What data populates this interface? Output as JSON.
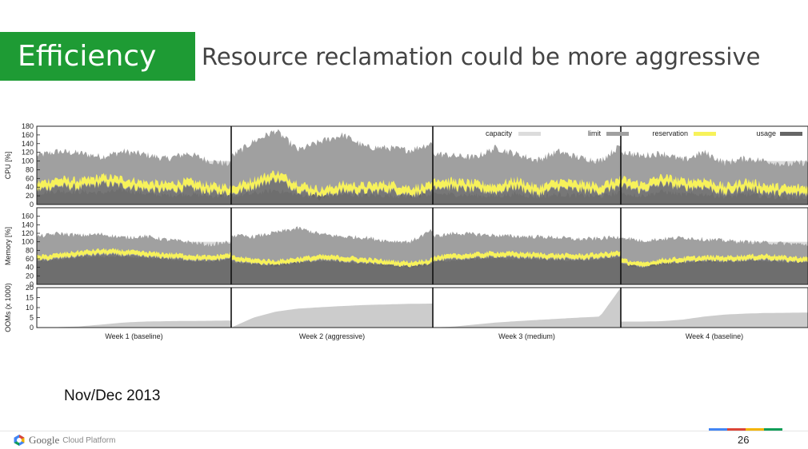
{
  "slide": {
    "section_title": "Efficiency",
    "subtitle": "Resource reclamation could be more aggressive",
    "date_note": "Nov/Dec 2013",
    "footer": {
      "brand": "Google",
      "product": "Cloud Platform",
      "page_number": "26"
    },
    "colors": {
      "section_green": "#1e9b34",
      "footer_strip": [
        "#4285f4",
        "#db4437",
        "#f4b400",
        "#0f9d58"
      ]
    }
  },
  "chart_data": {
    "type": "area",
    "weeks": [
      "Week 1 (baseline)",
      "Week 2 (aggressive)",
      "Week 3 (medium)",
      "Week 4 (baseline)"
    ],
    "legend": [
      "capacity",
      "limit",
      "reservation",
      "usage"
    ],
    "series_colors": {
      "capacity": "#dcdcdc",
      "limit": "#a0a0a0",
      "reservation": "#f7f25a",
      "usage": "#666666",
      "ooms": "#cccccc"
    },
    "panels": [
      {
        "id": "cpu",
        "ylabel": "CPU [%]",
        "ylim": [
          0,
          180
        ],
        "ticks": [
          0,
          20,
          40,
          60,
          80,
          100,
          120,
          140,
          160,
          180
        ],
        "capacity": 100,
        "limit": [
          [
            113,
            122,
            118,
            110,
            122,
            115,
            105,
            118,
            100,
            92
          ],
          [
            110,
            145,
            170,
            125,
            145,
            160,
            132,
            130,
            125,
            142
          ],
          [
            118,
            112,
            108,
            130,
            116,
            102,
            122,
            108,
            100,
            136
          ],
          [
            122,
            112,
            118,
            102,
            120,
            96,
            106,
            100,
            92,
            97
          ]
        ],
        "reservation": [
          [
            50,
            60,
            55,
            65,
            60,
            52,
            48,
            55,
            45,
            42
          ],
          [
            40,
            58,
            75,
            50,
            35,
            48,
            45,
            50,
            40,
            45
          ],
          [
            60,
            55,
            50,
            45,
            58,
            40,
            55,
            50,
            45,
            60
          ],
          [
            60,
            48,
            65,
            55,
            58,
            42,
            55,
            45,
            40,
            42
          ]
        ],
        "usage": [
          [
            26,
            31,
            29,
            27,
            33,
            25,
            21,
            24,
            20,
            19
          ],
          [
            20,
            25,
            33,
            22,
            18,
            23,
            21,
            21,
            19,
            21
          ],
          [
            25,
            23,
            21,
            19,
            24,
            18,
            23,
            21,
            19,
            27
          ],
          [
            26,
            20,
            30,
            23,
            24,
            18,
            23,
            19,
            16,
            17
          ]
        ]
      },
      {
        "id": "memory",
        "ylabel": "Memory [%]",
        "ylim": [
          0,
          180
        ],
        "ticks": [
          0,
          20,
          40,
          60,
          80,
          100,
          120,
          140,
          160
        ],
        "capacity": 100,
        "limit": [
          [
            112,
            120,
            115,
            118,
            110,
            113,
            105,
            100,
            93,
            100
          ],
          [
            115,
            112,
            122,
            132,
            118,
            112,
            110,
            102,
            100,
            128
          ],
          [
            112,
            120,
            118,
            115,
            113,
            112,
            110,
            106,
            108,
            112
          ],
          [
            112,
            102,
            107,
            110,
            106,
            103,
            100,
            98,
            96,
            94
          ]
        ],
        "reservation": [
          [
            66,
            72,
            78,
            82,
            80,
            76,
            73,
            70,
            66,
            73
          ],
          [
            66,
            60,
            56,
            63,
            68,
            66,
            61,
            56,
            53,
            60
          ],
          [
            66,
            70,
            73,
            76,
            75,
            73,
            71,
            70,
            73,
            78
          ],
          [
            60,
            50,
            60,
            63,
            66,
            66,
            68,
            70,
            65,
            63
          ]
        ],
        "usage": [
          [
            54,
            58,
            63,
            66,
            65,
            62,
            59,
            56,
            53,
            59
          ],
          [
            52,
            48,
            45,
            51,
            55,
            53,
            49,
            45,
            42,
            49
          ],
          [
            53,
            56,
            59,
            62,
            60,
            59,
            57,
            56,
            59,
            63
          ],
          [
            49,
            40,
            49,
            51,
            54,
            53,
            55,
            56,
            52,
            51
          ]
        ]
      },
      {
        "id": "ooms",
        "ylabel": "OOMs (x 1000)",
        "ylim": [
          0,
          20
        ],
        "ticks": [
          0,
          5,
          10,
          15,
          20
        ],
        "ooms": [
          [
            0.0,
            0.2,
            0.6,
            1.5,
            2.5,
            3.0,
            3.2,
            3.3,
            3.4,
            3.5
          ],
          [
            0.0,
            5.0,
            8.0,
            9.5,
            10.2,
            10.8,
            11.3,
            11.6,
            11.9,
            12.0
          ],
          [
            0.0,
            0.5,
            1.5,
            2.5,
            3.2,
            3.8,
            4.4,
            5.0,
            5.5,
            20.0
          ],
          [
            3.0,
            3.0,
            3.2,
            4.0,
            5.5,
            6.5,
            7.0,
            7.3,
            7.4,
            7.5
          ]
        ]
      }
    ]
  }
}
